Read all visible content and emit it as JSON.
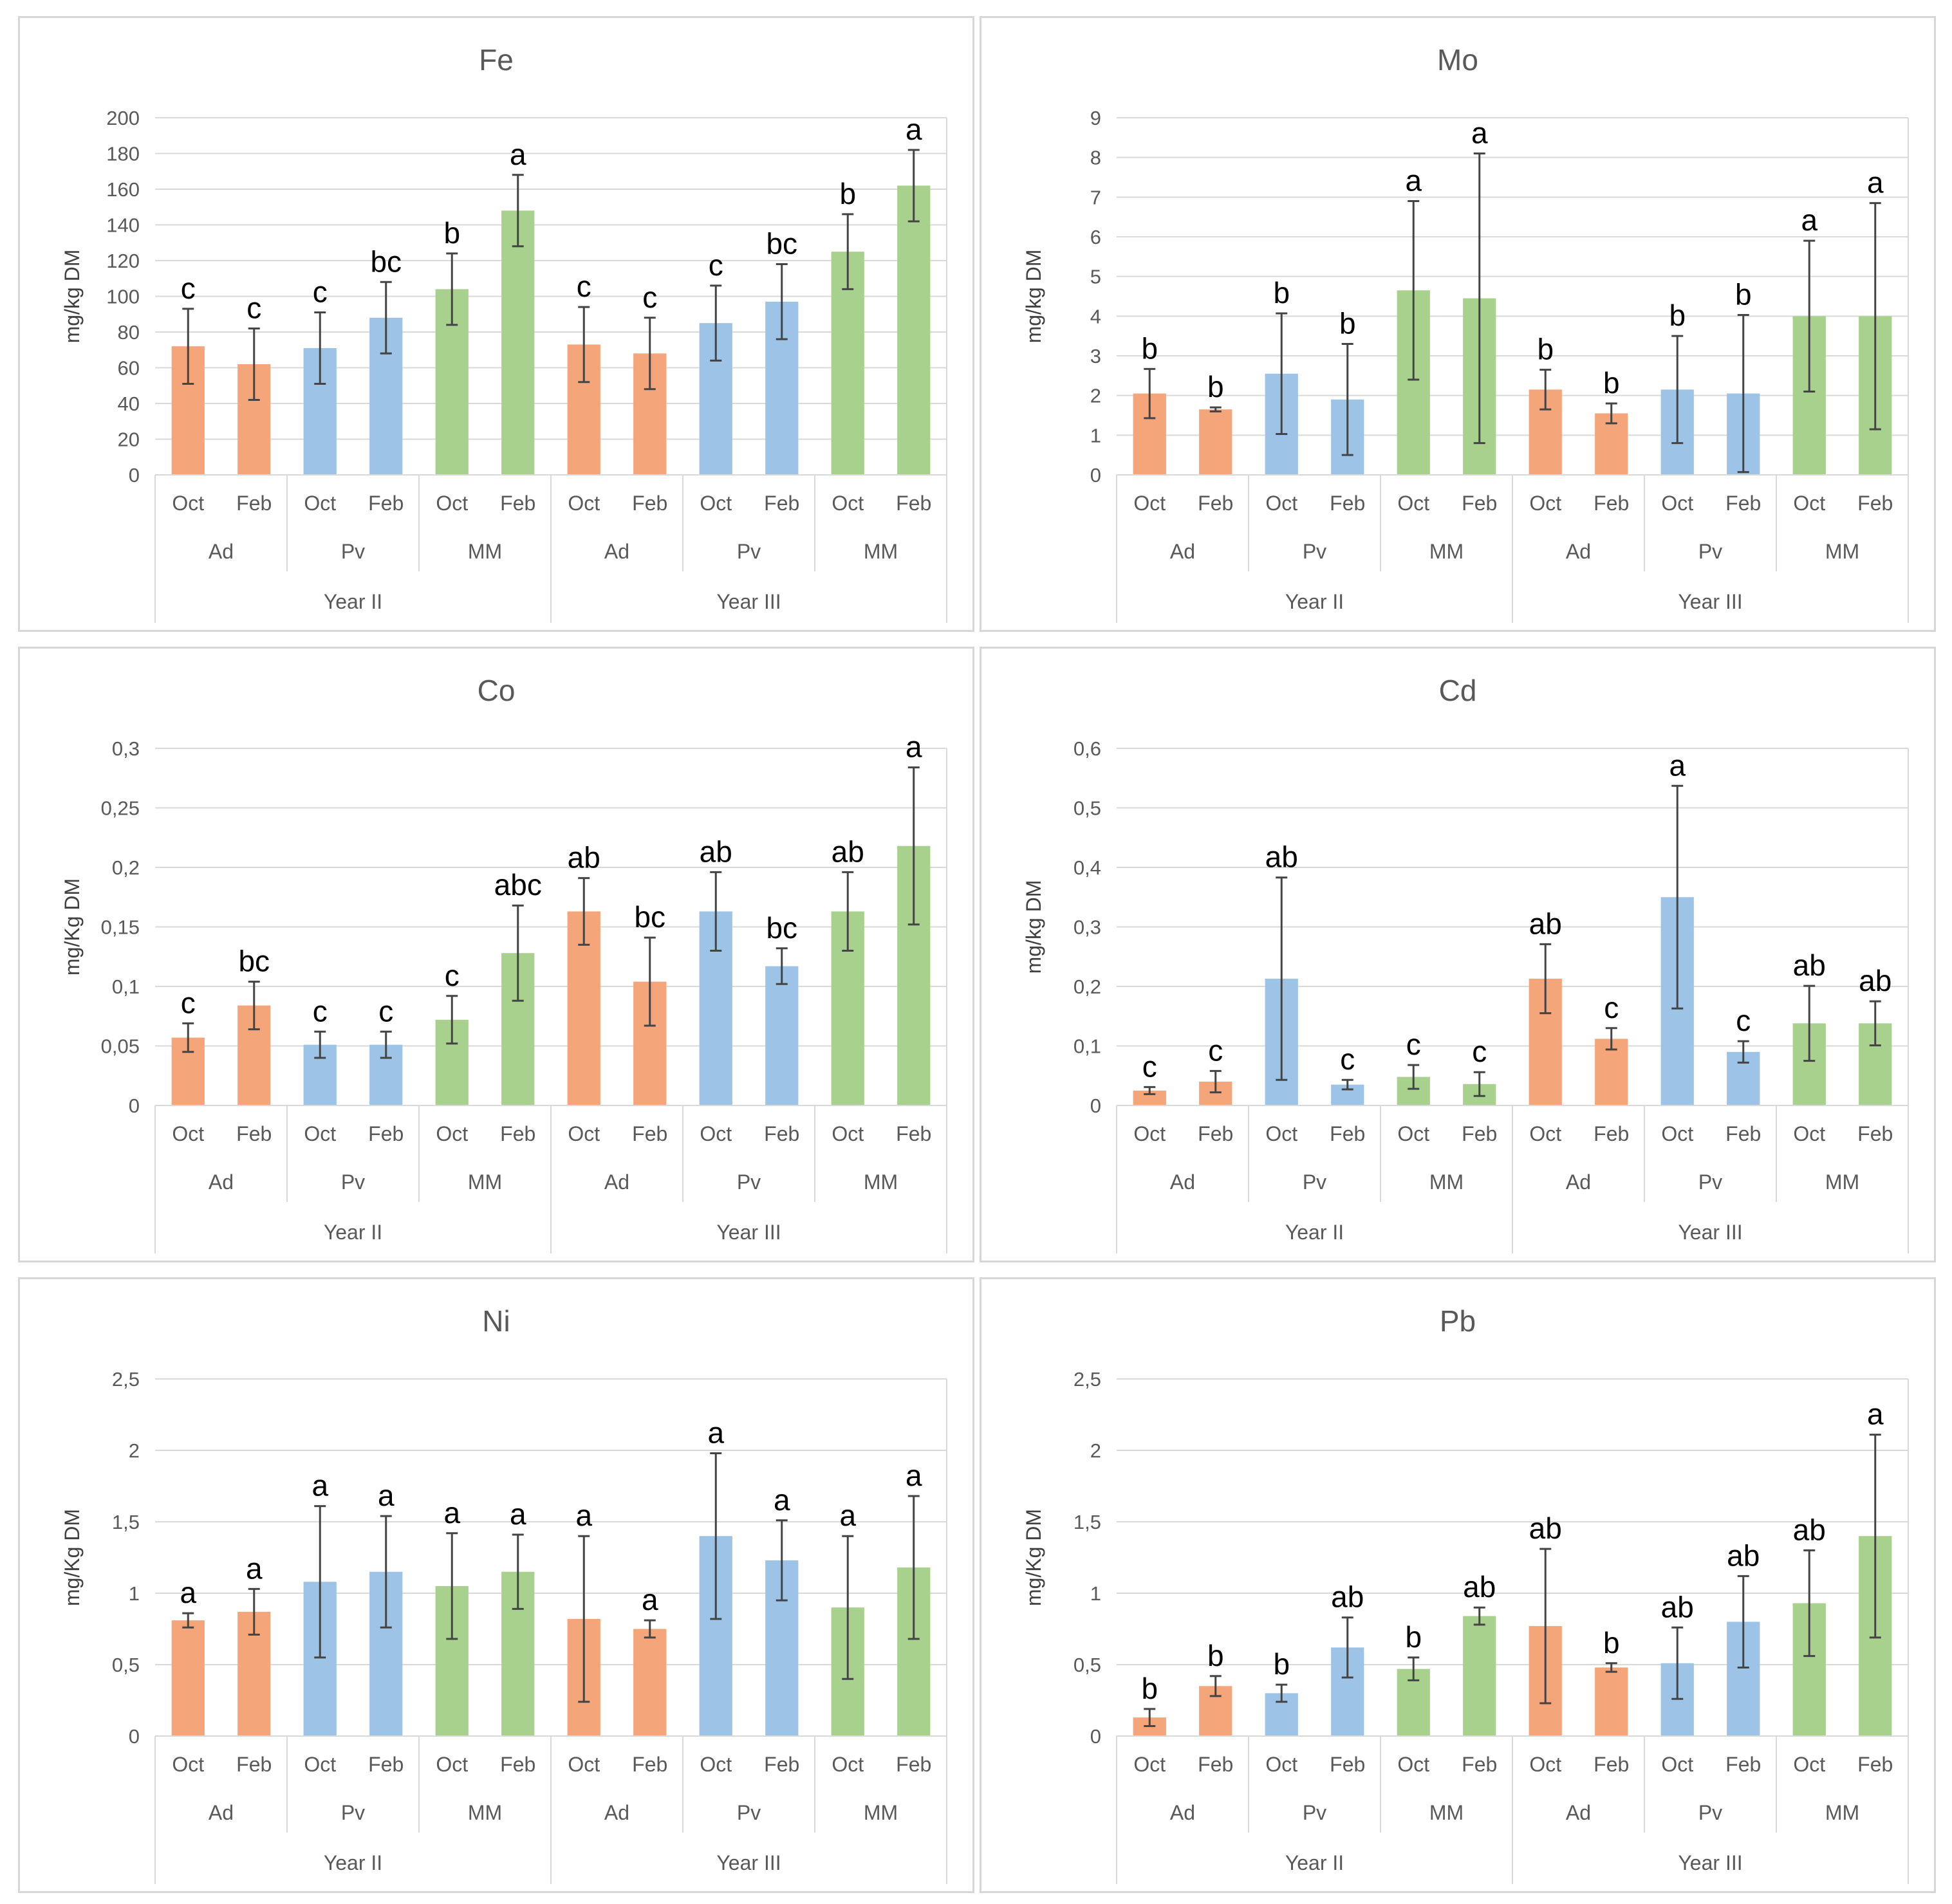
{
  "colors": {
    "Ad": "#f4a57a",
    "Pv": "#9dc3e6",
    "MM": "#a9d18e",
    "grid": "#d9d9d9",
    "text": "#595959",
    "error_bar": "#444444"
  },
  "chart_data": [
    {
      "type": "bar",
      "title": "Fe",
      "ylabel": "mg/kg DM",
      "ylim": [
        0,
        200
      ],
      "yticks": [
        "0",
        "20",
        "40",
        "60",
        "80",
        "100",
        "120",
        "140",
        "160",
        "180",
        "200"
      ],
      "ytick_values": [
        0,
        20,
        40,
        60,
        80,
        100,
        120,
        140,
        160,
        180,
        200
      ],
      "months": [
        "Oct",
        "Feb",
        "Oct",
        "Feb",
        "Oct",
        "Feb",
        "Oct",
        "Feb",
        "Oct",
        "Feb",
        "Oct",
        "Feb"
      ],
      "treatments": [
        "Ad",
        "Pv",
        "MM",
        "Ad",
        "Pv",
        "MM"
      ],
      "years": [
        "Year II",
        "Year III"
      ],
      "values": [
        72,
        62,
        71,
        88,
        104,
        148,
        73,
        68,
        85,
        97,
        125,
        162
      ],
      "errors": [
        21,
        20,
        20,
        20,
        20,
        20,
        21,
        20,
        21,
        21,
        21,
        20
      ],
      "letters": [
        "c",
        "c",
        "c",
        "bc",
        "b",
        "a",
        "c",
        "c",
        "c",
        "bc",
        "b",
        "a"
      ]
    },
    {
      "type": "bar",
      "title": "Mo",
      "ylabel": "mg/kg DM",
      "ylim": [
        0,
        9
      ],
      "yticks": [
        "0",
        "1",
        "2",
        "3",
        "4",
        "5",
        "6",
        "7",
        "8",
        "9"
      ],
      "ytick_values": [
        0,
        1,
        2,
        3,
        4,
        5,
        6,
        7,
        8,
        9
      ],
      "months": [
        "Oct",
        "Feb",
        "Oct",
        "Feb",
        "Oct",
        "Feb",
        "Oct",
        "Feb",
        "Oct",
        "Feb",
        "Oct",
        "Feb"
      ],
      "treatments": [
        "Ad",
        "Pv",
        "MM",
        "Ad",
        "Pv",
        "MM"
      ],
      "years": [
        "Year II",
        "Year III"
      ],
      "values": [
        2.05,
        1.65,
        2.55,
        1.9,
        4.65,
        4.45,
        2.15,
        1.55,
        2.15,
        2.05,
        4.0,
        4.0
      ],
      "errors": [
        0.62,
        0.05,
        1.52,
        1.4,
        2.25,
        3.65,
        0.5,
        0.25,
        1.35,
        1.98,
        1.9,
        2.85
      ],
      "letters": [
        "b",
        "b",
        "b",
        "b",
        "a",
        "a",
        "b",
        "b",
        "b",
        "b",
        "a",
        "a"
      ]
    },
    {
      "type": "bar",
      "title": "Co",
      "ylabel": "mg/Kg DM",
      "ylim": [
        0,
        0.3
      ],
      "yticks": [
        "0",
        "0,05",
        "0,1",
        "0,15",
        "0,2",
        "0,25",
        "0,3"
      ],
      "ytick_values": [
        0,
        0.05,
        0.1,
        0.15,
        0.2,
        0.25,
        0.3
      ],
      "months": [
        "Oct",
        "Feb",
        "Oct",
        "Feb",
        "Oct",
        "Feb",
        "Oct",
        "Feb",
        "Oct",
        "Feb",
        "Oct",
        "Feb"
      ],
      "treatments": [
        "Ad",
        "Pv",
        "MM",
        "Ad",
        "Pv",
        "MM"
      ],
      "years": [
        "Year II",
        "Year III"
      ],
      "values": [
        0.057,
        0.084,
        0.051,
        0.051,
        0.072,
        0.128,
        0.163,
        0.104,
        0.163,
        0.117,
        0.163,
        0.218
      ],
      "errors": [
        0.012,
        0.02,
        0.011,
        0.011,
        0.02,
        0.04,
        0.028,
        0.037,
        0.033,
        0.015,
        0.033,
        0.066
      ],
      "letters": [
        "c",
        "bc",
        "c",
        "c",
        "c",
        "abc",
        "ab",
        "bc",
        "ab",
        "bc",
        "ab",
        "a"
      ]
    },
    {
      "type": "bar",
      "title": "Cd",
      "ylabel": "mg/kg DM",
      "ylim": [
        0,
        0.6
      ],
      "yticks": [
        "0",
        "0,1",
        "0,2",
        "0,3",
        "0,4",
        "0,5",
        "0,6"
      ],
      "ytick_values": [
        0,
        0.1,
        0.2,
        0.3,
        0.4,
        0.5,
        0.6
      ],
      "months": [
        "Oct",
        "Feb",
        "Oct",
        "Feb",
        "Oct",
        "Feb",
        "Oct",
        "Feb",
        "Oct",
        "Feb",
        "Oct",
        "Feb"
      ],
      "treatments": [
        "Ad",
        "Pv",
        "MM",
        "Ad",
        "Pv",
        "MM"
      ],
      "years": [
        "Year II",
        "Year III"
      ],
      "values": [
        0.025,
        0.04,
        0.213,
        0.035,
        0.048,
        0.036,
        0.213,
        0.112,
        0.35,
        0.09,
        0.138,
        0.138
      ],
      "errors": [
        0.006,
        0.018,
        0.17,
        0.008,
        0.02,
        0.02,
        0.058,
        0.018,
        0.187,
        0.018,
        0.063,
        0.037
      ],
      "letters": [
        "c",
        "c",
        "ab",
        "c",
        "c",
        "c",
        "ab",
        "c",
        "a",
        "c",
        "ab",
        "ab"
      ]
    },
    {
      "type": "bar",
      "title": "Ni",
      "ylabel": "mg/Kg DM",
      "ylim": [
        0,
        2.5
      ],
      "yticks": [
        "0",
        "0,5",
        "1",
        "1,5",
        "2",
        "2,5"
      ],
      "ytick_values": [
        0,
        0.5,
        1,
        1.5,
        2,
        2.5
      ],
      "months": [
        "Oct",
        "Feb",
        "Oct",
        "Feb",
        "Oct",
        "Feb",
        "Oct",
        "Feb",
        "Oct",
        "Feb",
        "Oct",
        "Feb"
      ],
      "treatments": [
        "Ad",
        "Pv",
        "MM",
        "Ad",
        "Pv",
        "MM"
      ],
      "years": [
        "Year II",
        "Year III"
      ],
      "values": [
        0.81,
        0.87,
        1.08,
        1.15,
        1.05,
        1.15,
        0.82,
        0.75,
        1.4,
        1.23,
        0.9,
        1.18
      ],
      "errors": [
        0.05,
        0.16,
        0.53,
        0.39,
        0.37,
        0.26,
        0.58,
        0.06,
        0.58,
        0.28,
        0.5,
        0.5
      ],
      "letters": [
        "a",
        "a",
        "a",
        "a",
        "a",
        "a",
        "a",
        "a",
        "a",
        "a",
        "a",
        "a"
      ]
    },
    {
      "type": "bar",
      "title": "Pb",
      "ylabel": "mg/Kg DM",
      "ylim": [
        0,
        2.5
      ],
      "yticks": [
        "0",
        "0,5",
        "1",
        "1,5",
        "2",
        "2,5"
      ],
      "ytick_values": [
        0,
        0.5,
        1,
        1.5,
        2,
        2.5
      ],
      "months": [
        "Oct",
        "Feb",
        "Oct",
        "Feb",
        "Oct",
        "Feb",
        "Oct",
        "Feb",
        "Oct",
        "Feb",
        "Oct",
        "Feb"
      ],
      "treatments": [
        "Ad",
        "Pv",
        "MM",
        "Ad",
        "Pv",
        "MM"
      ],
      "years": [
        "Year II",
        "Year III"
      ],
      "values": [
        0.13,
        0.35,
        0.3,
        0.62,
        0.47,
        0.84,
        0.77,
        0.48,
        0.51,
        0.8,
        0.93,
        1.4
      ],
      "errors": [
        0.06,
        0.07,
        0.06,
        0.21,
        0.08,
        0.06,
        0.54,
        0.03,
        0.25,
        0.32,
        0.37,
        0.71
      ],
      "letters": [
        "b",
        "b",
        "b",
        "ab",
        "b",
        "ab",
        "ab",
        "b",
        "ab",
        "ab",
        "ab",
        "a"
      ]
    }
  ]
}
